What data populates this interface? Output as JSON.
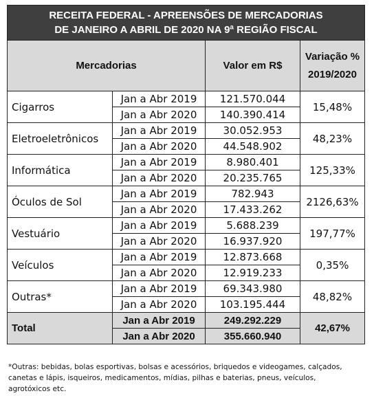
{
  "title": {
    "line1": "RECEITA FEDERAL - APREENSÕES DE MERCADORIAS",
    "line2": "DE JANEIRO A ABRIL DE 2020 NA 9ª REGIÃO FISCAL"
  },
  "headers": {
    "mercadorias": "Mercadorias",
    "valor": "Valor em R$",
    "variacao_line1": "Variação %",
    "variacao_line2": "2019/2020"
  },
  "rows": [
    {
      "category": "Cigarros",
      "p1": "Jan a Abr 2019",
      "v1": "121.570.044",
      "p2": "Jan a Abr 2020",
      "v2": "140.390.414",
      "pct": "15,48%"
    },
    {
      "category": "Eletroeletrônicos",
      "p1": "Jan a Abr 2019",
      "v1": "30.052.953",
      "p2": "Jan a Abr 2020",
      "v2": "44.548.902",
      "pct": "48,23%"
    },
    {
      "category": "Informática",
      "p1": "Jan a Abr 2019",
      "v1": "8.980.401",
      "p2": "Jan a Abr 2020",
      "v2": "20.235.765",
      "pct": "125,33%"
    },
    {
      "category": "Óculos de Sol",
      "p1": "Jan a Abr 2019",
      "v1": "782.943",
      "p2": "Jan a Abr 2020",
      "v2": "17.433.262",
      "pct": "2126,63%"
    },
    {
      "category": "Vestuário",
      "p1": "Jan a Abr 2019",
      "v1": "5.688.239",
      "p2": "Jan a Abr 2020",
      "v2": "16.937.920",
      "pct": "197,77%"
    },
    {
      "category": "Veículos",
      "p1": "Jan a Abr 2019",
      "v1": "12.873.668",
      "p2": "Jan a Abr 2020",
      "v2": "12.919.233",
      "pct": "0,35%"
    },
    {
      "category": "Outras*",
      "p1": "Jan a Abr 2019",
      "v1": "69.343.980",
      "p2": "Jan a Abr 2020",
      "v2": "103.195.444",
      "pct": "48,82%"
    }
  ],
  "total": {
    "label": "Total",
    "p1": "Jan a Abr 2019",
    "v1": "249.292.229",
    "p2": "Jan a Abr 2020",
    "v2": "355.660.940",
    "pct": "42,67%"
  },
  "footnote": {
    "line1": "*Outras: bebidas, bolas esportivas, bolsas e acessórios, briquedos e videogames, calçados,",
    "line2": "canetas e lápis, isqueiros, medicamentos, mídias, pilhas e baterias, pneus, veículos,",
    "line3": "agrotóxicos etc."
  },
  "colors": {
    "title_bg": "#3f3f3f",
    "header_bg": "#d9d9d9",
    "total_bg": "#d9d9d9"
  }
}
